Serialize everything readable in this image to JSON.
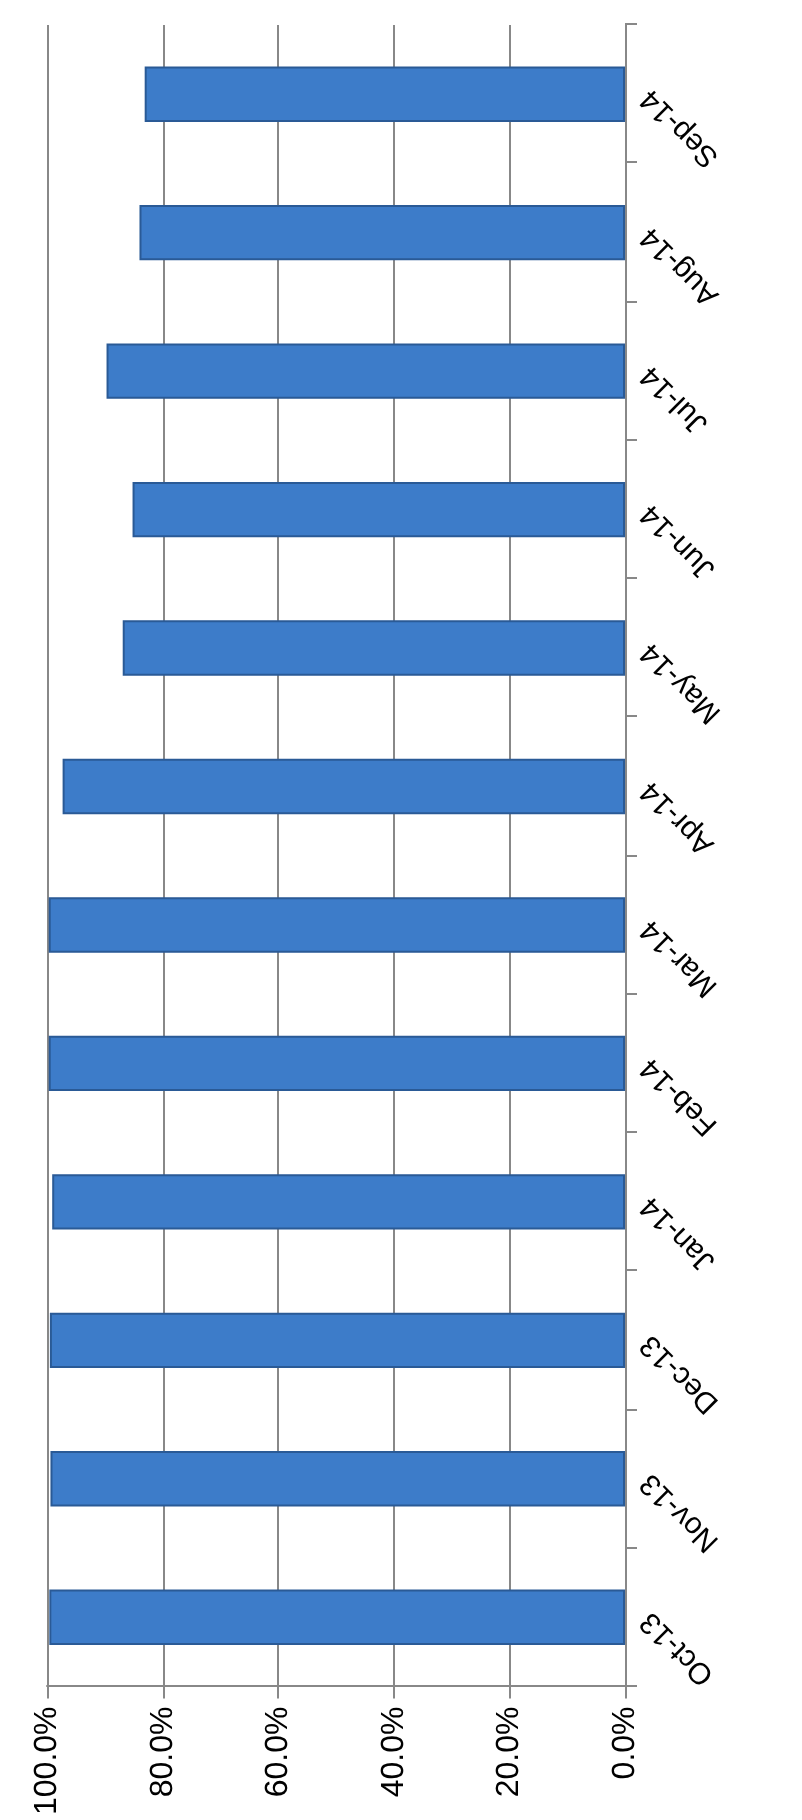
{
  "chart_data": {
    "type": "bar",
    "orientation": "horizontal",
    "categories": [
      "Sep-14",
      "Aug-14",
      "Jul-14",
      "Jun-14",
      "May-14",
      "Apr-14",
      "Mar-14",
      "Feb-14",
      "Jan-14",
      "Dec-13",
      "Nov-13",
      "Oct-13"
    ],
    "values": [
      83.1,
      84.0,
      89.7,
      85.2,
      86.9,
      97.3,
      99.7,
      99.7,
      99.1,
      99.5,
      99.4,
      99.6
    ],
    "color": "#3d7cc9",
    "xlim": [
      100,
      0
    ],
    "xticks": [
      {
        "value": 100,
        "label": "100.0%"
      },
      {
        "value": 80,
        "label": "80.0%"
      },
      {
        "value": 60,
        "label": "60.0%"
      },
      {
        "value": 40,
        "label": "40.0%"
      },
      {
        "value": 20,
        "label": "20.0%"
      },
      {
        "value": 0,
        "label": "0.0%"
      }
    ],
    "grid": "x"
  }
}
